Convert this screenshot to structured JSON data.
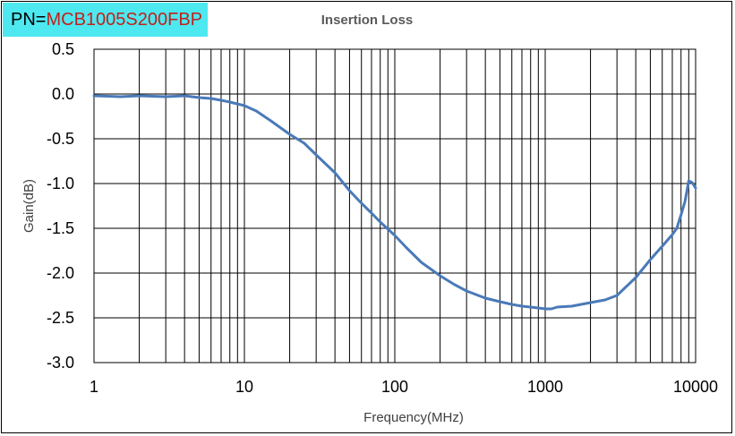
{
  "part_number": {
    "prefix": "PN=",
    "value": "MCB1005S200FBP",
    "box_color": "#4de8f0",
    "value_color": "#c0211b"
  },
  "chart_data": {
    "type": "line",
    "title": "Insertion Loss",
    "xlabel": "Frequency(MHz)",
    "ylabel": "Gain(dB)",
    "xscale": "log",
    "xlim": [
      1,
      10000
    ],
    "ylim": [
      -3.0,
      0.5
    ],
    "x_ticks": [
      1,
      10,
      100,
      1000,
      10000
    ],
    "x_tick_labels": [
      "1",
      "10",
      "100",
      "1000",
      "10000"
    ],
    "y_ticks": [
      0.5,
      0.0,
      -0.5,
      -1.0,
      -1.5,
      -2.0,
      -2.5,
      -3.0
    ],
    "y_tick_labels": [
      "0.5",
      "0.0",
      "-0.5",
      "-1.0",
      "-1.5",
      "-2.0",
      "-2.5",
      "-3.0"
    ],
    "grid": true,
    "line_color": "#4a7ab8",
    "series": [
      {
        "x": [
          1,
          1.5,
          2,
          3,
          4,
          5,
          6,
          7,
          8,
          10,
          12,
          15,
          20,
          25,
          30,
          40,
          50,
          60,
          70,
          80,
          100,
          120,
          150,
          200,
          250,
          300,
          400,
          500,
          600,
          700,
          800,
          900,
          1000,
          1100,
          1200,
          1500,
          2000,
          2500,
          3000,
          4000,
          5000,
          6000,
          7000,
          7500,
          8000,
          8500,
          9000,
          9500,
          10000
        ],
        "y": [
          -0.02,
          -0.03,
          -0.02,
          -0.03,
          -0.02,
          -0.04,
          -0.05,
          -0.07,
          -0.09,
          -0.13,
          -0.19,
          -0.3,
          -0.45,
          -0.55,
          -0.68,
          -0.88,
          -1.08,
          -1.22,
          -1.33,
          -1.43,
          -1.58,
          -1.72,
          -1.88,
          -2.03,
          -2.13,
          -2.2,
          -2.28,
          -2.32,
          -2.35,
          -2.37,
          -2.38,
          -2.39,
          -2.4,
          -2.4,
          -2.38,
          -2.37,
          -2.33,
          -2.3,
          -2.25,
          -2.05,
          -1.85,
          -1.7,
          -1.57,
          -1.5,
          -1.35,
          -1.2,
          -0.97,
          -0.99,
          -1.05
        ]
      }
    ]
  }
}
